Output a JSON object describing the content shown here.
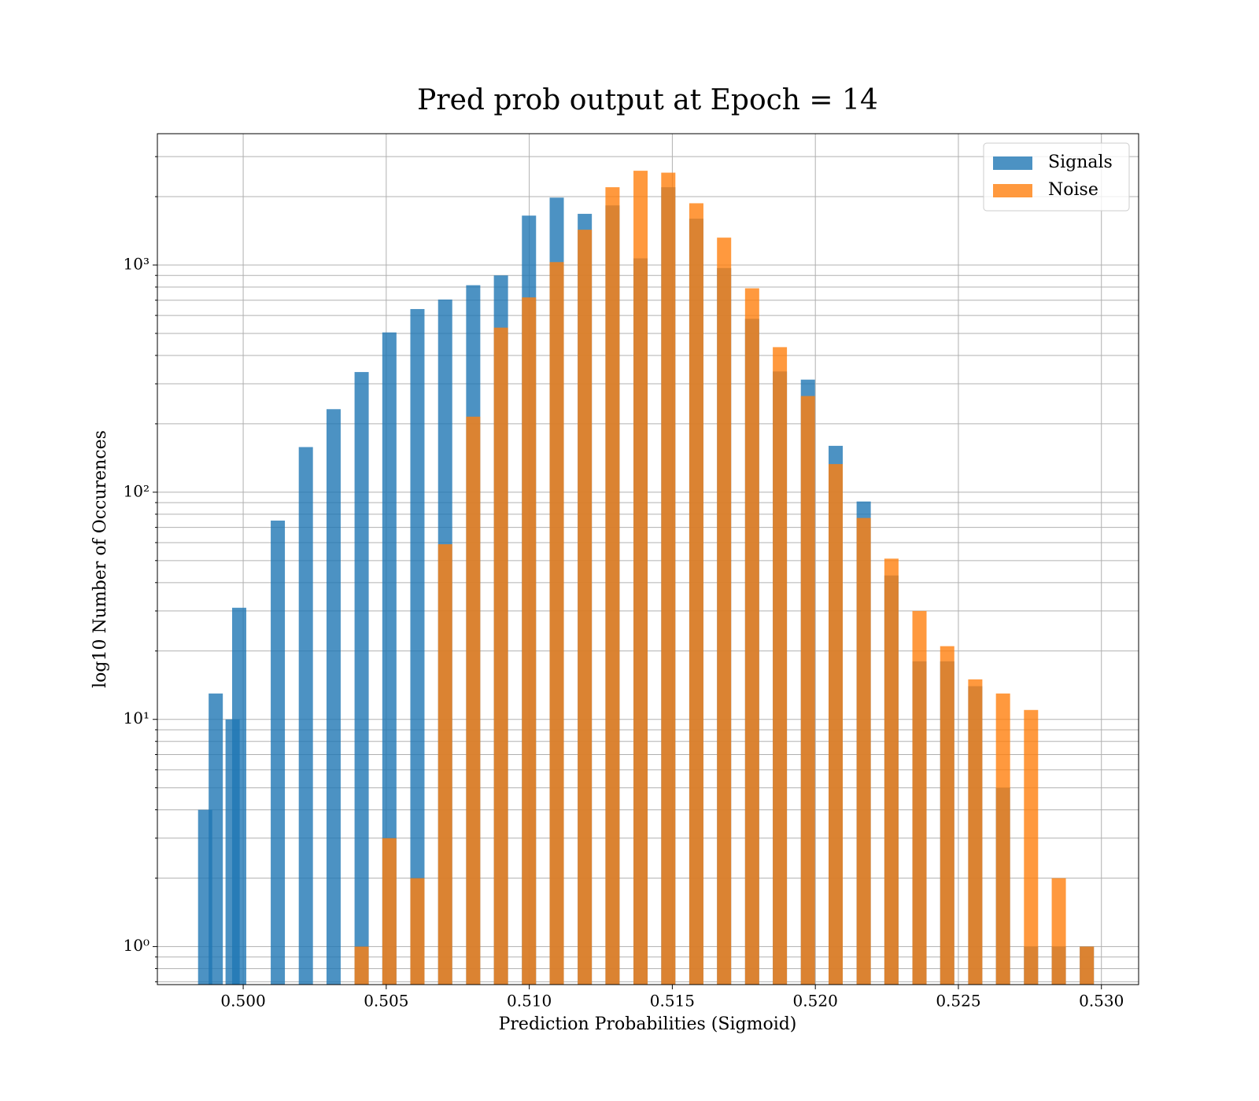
{
  "chart_data": {
    "type": "bar",
    "title": "Pred prob output at Epoch = 14",
    "xlabel": "Prediction Probabilities (Sigmoid)",
    "ylabel": "log10 Number of Occurences",
    "yscale": "log",
    "grid": true,
    "legend": "upper right",
    "xlim": [
      0.497,
      0.5313
    ],
    "ylim": [
      0.68,
      3785
    ],
    "xticks": [
      {
        "value": 0.5,
        "label": "0.500"
      },
      {
        "value": 0.505,
        "label": "0.505"
      },
      {
        "value": 0.51,
        "label": "0.510"
      },
      {
        "value": 0.515,
        "label": "0.515"
      },
      {
        "value": 0.52,
        "label": "0.520"
      },
      {
        "value": 0.525,
        "label": "0.525"
      },
      {
        "value": 0.53,
        "label": "0.530"
      }
    ],
    "yticks": [
      {
        "value": 1,
        "label": "10⁰"
      },
      {
        "value": 10,
        "label": "10¹"
      },
      {
        "value": 100,
        "label": "10²"
      },
      {
        "value": 1000,
        "label": "10³"
      }
    ],
    "yminorticks": [
      0.7,
      0.8,
      0.9,
      2,
      3,
      4,
      5,
      6,
      7,
      8,
      9,
      20,
      30,
      40,
      50,
      60,
      70,
      80,
      90,
      200,
      300,
      400,
      500,
      600,
      700,
      800,
      900,
      2000,
      3000
    ],
    "series": [
      {
        "name": "Signals",
        "color": "#1f77b4",
        "opacity": 0.8,
        "x": [
          0.49867,
          0.49904,
          0.49963,
          0.49986,
          0.50121,
          0.50219,
          0.50316,
          0.50414,
          0.50511,
          0.50609,
          0.50706,
          0.50804,
          0.50901,
          0.50999,
          0.51096,
          0.51194,
          0.51291,
          0.51389,
          0.51486,
          0.51584,
          0.51681,
          0.51779,
          0.51876,
          0.51974,
          0.52071,
          0.52169,
          0.52266,
          0.52364,
          0.52461,
          0.52559,
          0.52656,
          0.52754,
          0.52851,
          0.52949
        ],
        "values": [
          4,
          13,
          10,
          31,
          75,
          158,
          232,
          338,
          505,
          640,
          705,
          815,
          900,
          1650,
          1980,
          1680,
          1830,
          1070,
          2200,
          1600,
          970,
          580,
          340,
          313,
          160,
          91,
          43,
          18,
          18,
          14,
          5,
          1,
          1,
          1
        ]
      },
      {
        "name": "Noise",
        "color": "#ff7f0e",
        "opacity": 0.8,
        "x": [
          0.50414,
          0.50511,
          0.50609,
          0.50706,
          0.50804,
          0.50901,
          0.50999,
          0.51096,
          0.51194,
          0.51291,
          0.51389,
          0.51486,
          0.51584,
          0.51681,
          0.51779,
          0.51876,
          0.51974,
          0.52071,
          0.52169,
          0.52266,
          0.52364,
          0.52461,
          0.52559,
          0.52656,
          0.52754,
          0.52851,
          0.52949
        ],
        "values": [
          1,
          3,
          2,
          59,
          215,
          530,
          720,
          1030,
          1430,
          2200,
          2600,
          2550,
          1870,
          1320,
          790,
          435,
          265,
          133,
          77,
          51,
          30,
          21,
          15,
          13,
          11,
          2,
          1
        ]
      }
    ]
  }
}
